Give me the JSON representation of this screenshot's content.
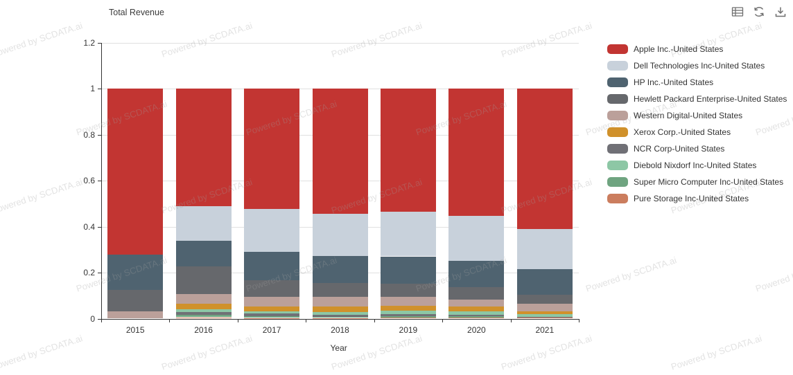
{
  "chart": {
    "title": "Total Revenue",
    "watermark_text": "Powered by SCDATA.ai",
    "toolbar": {
      "icons": [
        "data-table-icon",
        "refresh-icon",
        "download-icon"
      ],
      "icon_color": "#6e6e6e"
    }
  },
  "chart_data": {
    "type": "bar",
    "stacked": true,
    "normalized": true,
    "title": "Total Revenue",
    "xlabel": "Year",
    "ylabel": "",
    "ylim": [
      0,
      1.2
    ],
    "yticks": [
      0,
      0.2,
      0.4,
      0.6,
      0.8,
      1,
      1.2
    ],
    "grid": true,
    "legend_position": "right",
    "categories": [
      "2015",
      "2016",
      "2017",
      "2018",
      "2019",
      "2020",
      "2021"
    ],
    "series": [
      {
        "name": "Apple Inc.-United States",
        "color": "#c23532",
        "values": [
          0.72,
          0.512,
          0.524,
          0.545,
          0.535,
          0.554,
          0.611
        ]
      },
      {
        "name": "Dell Technologies Inc-United States",
        "color": "#c8d1db",
        "values": [
          0.0,
          0.149,
          0.184,
          0.183,
          0.194,
          0.196,
          0.173
        ]
      },
      {
        "name": "HP Inc.-United States",
        "color": "#4f6370",
        "values": [
          0.155,
          0.112,
          0.124,
          0.116,
          0.118,
          0.112,
          0.111
        ]
      },
      {
        "name": "Hewlett Packard Enterprise-United States",
        "color": "#66686c",
        "values": [
          0.094,
          0.119,
          0.074,
          0.06,
          0.059,
          0.056,
          0.041
        ]
      },
      {
        "name": "Western Digital-United States",
        "color": "#bba09a",
        "values": [
          0.031,
          0.044,
          0.042,
          0.044,
          0.038,
          0.03,
          0.032
        ]
      },
      {
        "name": "Xerox Corp.-United States",
        "color": "#d0912b",
        "values": [
          0.0,
          0.022,
          0.02,
          0.023,
          0.022,
          0.02,
          0.012
        ]
      },
      {
        "name": "NCR Corp-United States",
        "color": "#707076",
        "values": [
          0.0,
          0.013,
          0.012,
          0.008,
          0.009,
          0.007,
          0.002
        ]
      },
      {
        "name": "Diebold Nixdorf Inc-United States",
        "color": "#8dc7a5",
        "values": [
          0.0,
          0.012,
          0.01,
          0.012,
          0.014,
          0.015,
          0.011
        ]
      },
      {
        "name": "Super Micro Computer Inc-United States",
        "color": "#6fa480",
        "values": [
          0.0,
          0.011,
          0.007,
          0.006,
          0.007,
          0.006,
          0.002
        ]
      },
      {
        "name": "Pure Storage Inc-United States",
        "color": "#cb7d5e",
        "values": [
          0.0,
          0.006,
          0.003,
          0.003,
          0.004,
          0.004,
          0.005
        ]
      }
    ]
  }
}
